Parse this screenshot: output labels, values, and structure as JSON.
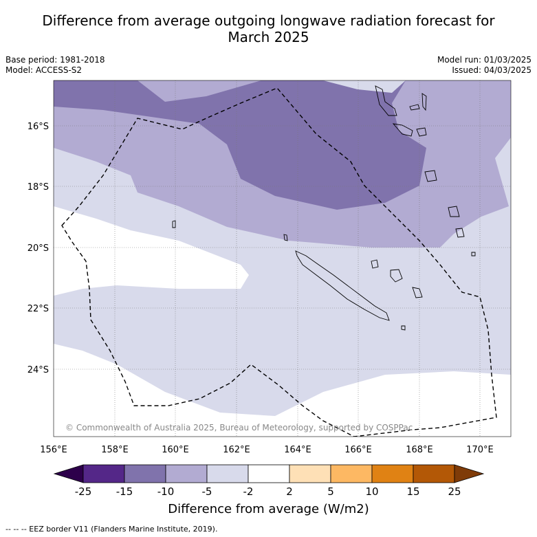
{
  "title_line1": "Difference from average outgoing longwave radiation forecast for",
  "title_line2": "March 2025",
  "base_period": "Base period: 1981-2018",
  "model": "Model: ACCESS-S2",
  "model_run": "Model run: 01/03/2025",
  "issued": "Issued: 04/03/2025",
  "copyright": "© Commonwealth of Australia 2025, Bureau of Meteorology, supported by COSPPac",
  "lat_labels": [
    "16°S",
    "18°S",
    "20°S",
    "22°S",
    "24°S"
  ],
  "lon_labels": [
    "156°E",
    "158°E",
    "160°E",
    "162°E",
    "164°E",
    "166°E",
    "168°E",
    "170°E"
  ],
  "colorbar": {
    "ticks": [
      "-25",
      "-15",
      "-10",
      "-5",
      "-2",
      "2",
      "5",
      "10",
      "15",
      "25"
    ],
    "colors": [
      "#2d004b",
      "#542788",
      "#8073ac",
      "#b2abd2",
      "#d8daeb",
      "#ffffff",
      "#fee0b6",
      "#fdb863",
      "#e08214",
      "#b35806",
      "#7f3b08"
    ],
    "label": "Difference from average (W/m2)"
  },
  "legend_footer": "--  --  -- EEZ border V11 (Flanders Marine Institute, 2019)."
}
